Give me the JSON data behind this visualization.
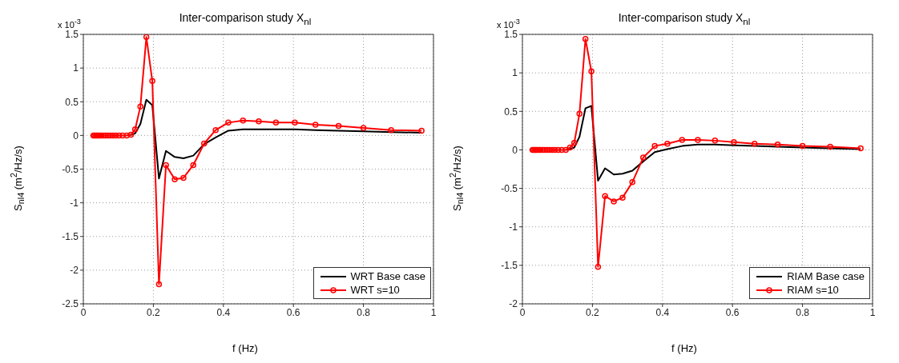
{
  "chart_data": [
    {
      "type": "line",
      "title": "Inter-comparison study X$_{nl}$",
      "xlabel": "f (Hz)",
      "ylabel": "S$_{nl4}$ (m$^{2}$/Hz/s)",
      "annotations": [
        "x 10$^{-3}$"
      ],
      "x": [
        0.029,
        0.032,
        0.036,
        0.039,
        0.043,
        0.048,
        0.052,
        0.058,
        0.063,
        0.07,
        0.077,
        0.085,
        0.093,
        0.102,
        0.112,
        0.124,
        0.136,
        0.148,
        0.163,
        0.18,
        0.197,
        0.216,
        0.236,
        0.261,
        0.286,
        0.314,
        0.345,
        0.378,
        0.414,
        0.456,
        0.501,
        0.55,
        0.604,
        0.663,
        0.729,
        0.8,
        0.879,
        0.966
      ],
      "series": [
        {
          "name": "WRT Base case",
          "color": "#000000",
          "marker": "none",
          "values": [
            null,
            null,
            null,
            null,
            null,
            null,
            null,
            null,
            null,
            null,
            null,
            null,
            null,
            null,
            null,
            0,
            0.01,
            0.03,
            0.17,
            0.53,
            0.45,
            -0.64,
            -0.23,
            -0.32,
            -0.34,
            -0.3,
            -0.13,
            -0.03,
            0.07,
            0.09,
            0.09,
            0.09,
            0.09,
            0.08,
            0.07,
            0.06,
            0.05,
            0.04
          ]
        },
        {
          "name": "WRT s=10",
          "color": "#ff0000",
          "marker": "circle",
          "values": [
            0,
            0,
            0,
            0,
            0,
            0,
            0,
            0,
            0,
            0,
            0,
            0,
            0,
            0,
            0,
            0,
            0.01,
            0.09,
            0.43,
            1.46,
            0.81,
            -2.21,
            -0.44,
            -0.65,
            -0.63,
            -0.44,
            -0.12,
            0.08,
            0.19,
            0.22,
            0.21,
            0.19,
            0.19,
            0.16,
            0.14,
            0.11,
            0.08,
            0.07
          ]
        }
      ],
      "xlim": [
        0,
        1
      ],
      "xticks": [
        0,
        0.2,
        0.4,
        0.6,
        0.8,
        1
      ],
      "ylim": [
        -2.5,
        1.5
      ],
      "yticks": [
        -2.5,
        -2,
        -1.5,
        -1,
        -0.5,
        0,
        0.5,
        1,
        1.5
      ],
      "grid": true,
      "legend": "bottom right",
      "line_style": "solid"
    },
    {
      "type": "line",
      "title": "Inter-comparison study X$_{nl}$",
      "xlabel": "f (Hz)",
      "ylabel": "S$_{nl4}$ (m$^{2}$/Hz/s)",
      "annotations": [
        "x 10$^{-3}$"
      ],
      "x": [
        0.029,
        0.032,
        0.036,
        0.039,
        0.043,
        0.048,
        0.052,
        0.058,
        0.063,
        0.07,
        0.077,
        0.085,
        0.093,
        0.102,
        0.112,
        0.124,
        0.136,
        0.148,
        0.163,
        0.18,
        0.197,
        0.216,
        0.236,
        0.261,
        0.286,
        0.314,
        0.345,
        0.378,
        0.414,
        0.456,
        0.501,
        0.55,
        0.604,
        0.663,
        0.729,
        0.8,
        0.879,
        0.966
      ],
      "series": [
        {
          "name": "RIAM Base case",
          "color": "#000000",
          "marker": "none",
          "values": [
            null,
            null,
            null,
            null,
            null,
            null,
            null,
            null,
            null,
            null,
            null,
            null,
            null,
            null,
            null,
            0,
            0.01,
            0.03,
            0.17,
            0.54,
            0.57,
            -0.4,
            -0.24,
            -0.32,
            -0.31,
            -0.27,
            -0.15,
            -0.03,
            0.01,
            0.05,
            0.07,
            0.07,
            0.06,
            0.05,
            0.04,
            0.03,
            0.02,
            0.01
          ]
        },
        {
          "name": "RIAM s=10",
          "color": "#ff0000",
          "marker": "circle",
          "values": [
            0,
            0,
            0,
            0,
            0,
            0,
            0,
            0,
            0,
            0,
            0,
            0,
            0,
            0,
            0,
            0,
            0.03,
            0.09,
            0.47,
            1.44,
            1.02,
            -1.52,
            -0.6,
            -0.67,
            -0.62,
            -0.42,
            -0.1,
            0.05,
            0.08,
            0.13,
            0.13,
            0.12,
            0.1,
            0.08,
            0.07,
            0.05,
            0.04,
            0.02
          ]
        }
      ],
      "xlim": [
        0,
        1
      ],
      "xticks": [
        0,
        0.2,
        0.4,
        0.6,
        0.8,
        1
      ],
      "ylim": [
        -2,
        1.5
      ],
      "yticks": [
        -2,
        -1.5,
        -1,
        -0.5,
        0,
        0.5,
        1,
        1.5
      ],
      "grid": true,
      "legend": "bottom right",
      "line_style": "solid"
    }
  ]
}
